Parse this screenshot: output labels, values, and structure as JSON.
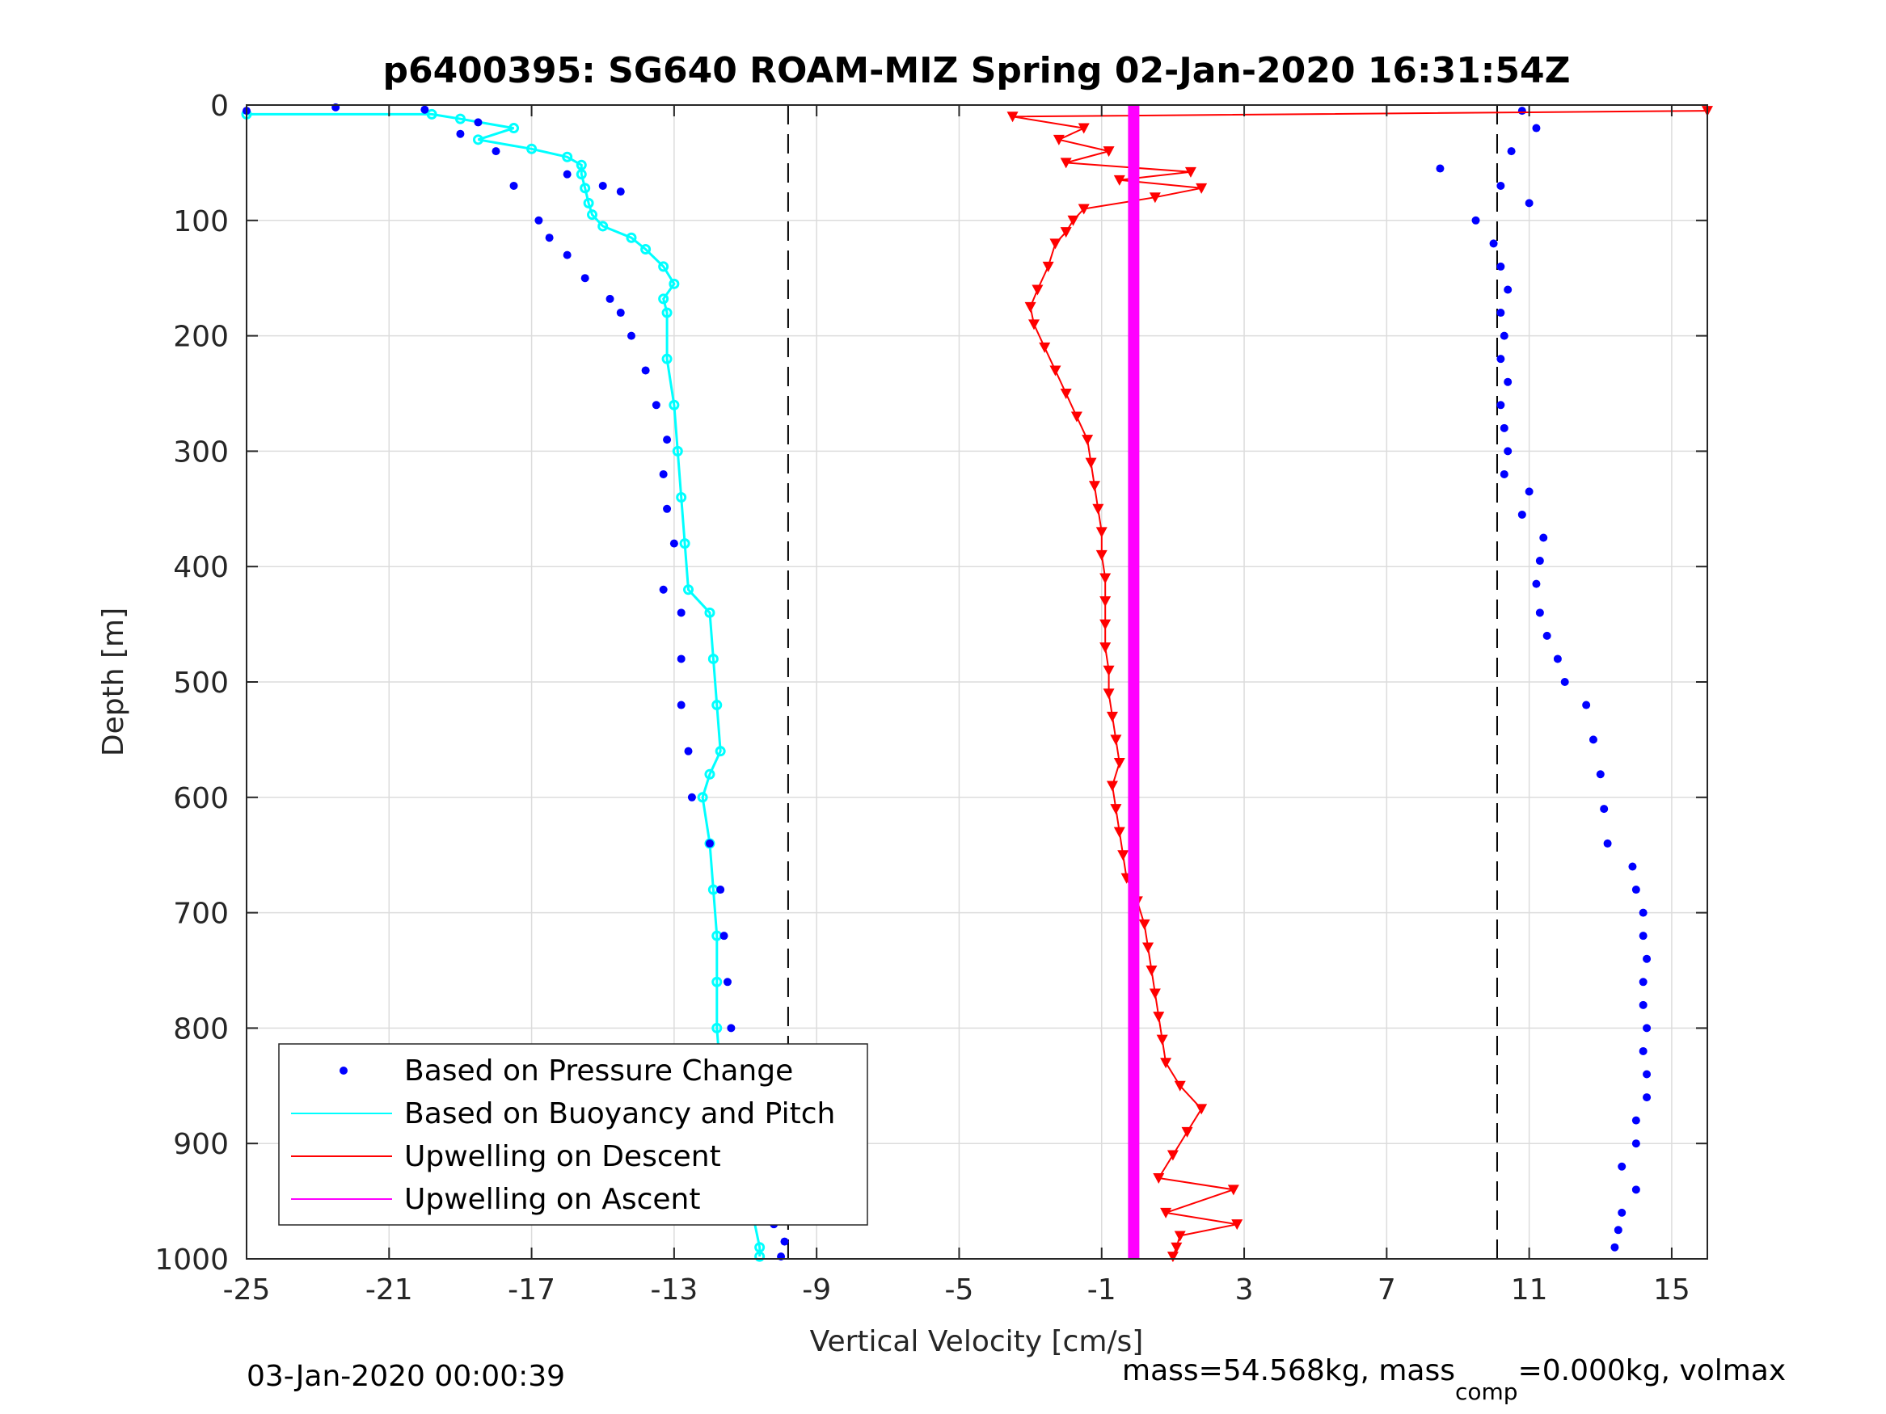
{
  "chart_data": {
    "type": "scatter",
    "title": "p6400395: SG640 ROAM-MIZ Spring 02-Jan-2020 16:31:54Z",
    "xlabel": "Vertical Velocity [cm/s]",
    "ylabel": "Depth [m]",
    "xlim": [
      -25,
      16
    ],
    "ylim": [
      1000,
      0
    ],
    "y_reversed": true,
    "xticks": [
      "-25",
      "-21",
      "-17",
      "-13",
      "-9",
      "-5",
      "-1",
      "3",
      "7",
      "11",
      "15"
    ],
    "yticks": [
      "0",
      "100",
      "200",
      "300",
      "400",
      "500",
      "600",
      "700",
      "800",
      "900",
      "1000"
    ],
    "grid": true,
    "legend_position": "bottom-left",
    "reference_lines": [
      -9.8,
      10.1
    ],
    "series": [
      {
        "name": "Based on Pressure Change",
        "color": "#0000ff",
        "marker": "dot",
        "descent": [
          [
            -25,
            5
          ],
          [
            -22.5,
            2
          ],
          [
            -20,
            4
          ],
          [
            -18.5,
            15
          ],
          [
            -19,
            25
          ],
          [
            -18,
            40
          ],
          [
            -17.5,
            70
          ],
          [
            -16,
            60
          ],
          [
            -15,
            70
          ],
          [
            -14.5,
            75
          ],
          [
            -16.8,
            100
          ],
          [
            -16.5,
            115
          ],
          [
            -16,
            130
          ],
          [
            -15.5,
            150
          ],
          [
            -14.8,
            168
          ],
          [
            -14.5,
            180
          ],
          [
            -14.2,
            200
          ],
          [
            -13.8,
            230
          ],
          [
            -13.5,
            260
          ],
          [
            -13.2,
            290
          ],
          [
            -13.3,
            320
          ],
          [
            -13.2,
            350
          ],
          [
            -13.0,
            380
          ],
          [
            -13.3,
            420
          ],
          [
            -12.8,
            440
          ],
          [
            -12.8,
            480
          ],
          [
            -12.8,
            520
          ],
          [
            -12.6,
            560
          ],
          [
            -12.5,
            600
          ],
          [
            -12.0,
            640
          ],
          [
            -11.7,
            680
          ],
          [
            -11.6,
            720
          ],
          [
            -11.5,
            760
          ],
          [
            -11.4,
            800
          ],
          [
            -11.0,
            830
          ],
          [
            -10.6,
            860
          ],
          [
            -10.4,
            890
          ],
          [
            -10.2,
            910
          ],
          [
            -10.5,
            930
          ],
          [
            -10.2,
            950
          ],
          [
            -10.2,
            970
          ],
          [
            -9.9,
            985
          ],
          [
            -10.0,
            998
          ]
        ],
        "ascent": [
          [
            10.8,
            5
          ],
          [
            11.2,
            20
          ],
          [
            10.5,
            40
          ],
          [
            8.5,
            55
          ],
          [
            10.2,
            70
          ],
          [
            11.0,
            85
          ],
          [
            9.5,
            100
          ],
          [
            10.0,
            120
          ],
          [
            10.2,
            140
          ],
          [
            10.4,
            160
          ],
          [
            10.2,
            180
          ],
          [
            10.3,
            200
          ],
          [
            10.2,
            220
          ],
          [
            10.4,
            240
          ],
          [
            10.2,
            260
          ],
          [
            10.3,
            280
          ],
          [
            10.4,
            300
          ],
          [
            10.3,
            320
          ],
          [
            11.0,
            335
          ],
          [
            10.8,
            355
          ],
          [
            11.4,
            375
          ],
          [
            11.3,
            395
          ],
          [
            11.2,
            415
          ],
          [
            11.3,
            440
          ],
          [
            11.5,
            460
          ],
          [
            11.8,
            480
          ],
          [
            12.0,
            500
          ],
          [
            12.6,
            520
          ],
          [
            12.8,
            550
          ],
          [
            13.0,
            580
          ],
          [
            13.1,
            610
          ],
          [
            13.2,
            640
          ],
          [
            13.9,
            660
          ],
          [
            14.0,
            680
          ],
          [
            14.2,
            700
          ],
          [
            14.2,
            720
          ],
          [
            14.3,
            740
          ],
          [
            14.2,
            760
          ],
          [
            14.2,
            780
          ],
          [
            14.3,
            800
          ],
          [
            14.2,
            820
          ],
          [
            14.3,
            840
          ],
          [
            14.3,
            860
          ],
          [
            14.0,
            880
          ],
          [
            14.0,
            900
          ],
          [
            13.6,
            920
          ],
          [
            14.0,
            940
          ],
          [
            13.6,
            960
          ],
          [
            13.5,
            975
          ],
          [
            13.4,
            990
          ]
        ]
      },
      {
        "name": "Based on Buoyancy and Pitch",
        "color": "#00ffff",
        "marker": "line",
        "points": [
          [
            -25,
            8
          ],
          [
            -19.8,
            8
          ],
          [
            -19.0,
            12
          ],
          [
            -17.5,
            20
          ],
          [
            -18.5,
            30
          ],
          [
            -17.0,
            38
          ],
          [
            -16.0,
            45
          ],
          [
            -15.6,
            52
          ],
          [
            -15.6,
            60
          ],
          [
            -15.5,
            72
          ],
          [
            -15.4,
            85
          ],
          [
            -15.3,
            95
          ],
          [
            -15.0,
            105
          ],
          [
            -14.2,
            115
          ],
          [
            -13.8,
            125
          ],
          [
            -13.3,
            140
          ],
          [
            -13.0,
            155
          ],
          [
            -13.3,
            168
          ],
          [
            -13.2,
            180
          ],
          [
            -13.2,
            220
          ],
          [
            -13.0,
            260
          ],
          [
            -12.9,
            300
          ],
          [
            -12.8,
            340
          ],
          [
            -12.7,
            380
          ],
          [
            -12.6,
            420
          ],
          [
            -12.0,
            440
          ],
          [
            -11.9,
            480
          ],
          [
            -11.8,
            520
          ],
          [
            -11.7,
            560
          ],
          [
            -12.0,
            580
          ],
          [
            -12.2,
            600
          ],
          [
            -12.0,
            640
          ],
          [
            -11.9,
            680
          ],
          [
            -11.8,
            720
          ],
          [
            -11.8,
            760
          ],
          [
            -11.8,
            800
          ],
          [
            -11.7,
            840
          ],
          [
            -11.6,
            870
          ],
          [
            -11.2,
            900
          ],
          [
            -10.8,
            930
          ],
          [
            -10.8,
            960
          ],
          [
            -10.6,
            990
          ],
          [
            -10.6,
            998
          ]
        ]
      },
      {
        "name": "Upwelling on Descent",
        "color": "#ff0000",
        "marker": "triangle-down",
        "points": [
          [
            16,
            5
          ],
          [
            -3.5,
            10
          ],
          [
            -1.5,
            20
          ],
          [
            -2.2,
            30
          ],
          [
            -0.8,
            40
          ],
          [
            -2.0,
            50
          ],
          [
            1.5,
            58
          ],
          [
            -0.5,
            65
          ],
          [
            1.8,
            72
          ],
          [
            0.5,
            80
          ],
          [
            -1.5,
            90
          ],
          [
            -1.8,
            100
          ],
          [
            -2.0,
            110
          ],
          [
            -2.3,
            120
          ],
          [
            -2.5,
            140
          ],
          [
            -2.8,
            160
          ],
          [
            -3.0,
            175
          ],
          [
            -2.9,
            190
          ],
          [
            -2.6,
            210
          ],
          [
            -2.3,
            230
          ],
          [
            -2.0,
            250
          ],
          [
            -1.7,
            270
          ],
          [
            -1.4,
            290
          ],
          [
            -1.3,
            310
          ],
          [
            -1.2,
            330
          ],
          [
            -1.1,
            350
          ],
          [
            -1.0,
            370
          ],
          [
            -1.0,
            390
          ],
          [
            -0.9,
            410
          ],
          [
            -0.9,
            430
          ],
          [
            -0.9,
            450
          ],
          [
            -0.9,
            470
          ],
          [
            -0.8,
            490
          ],
          [
            -0.8,
            510
          ],
          [
            -0.7,
            530
          ],
          [
            -0.6,
            550
          ],
          [
            -0.5,
            570
          ],
          [
            -0.7,
            590
          ],
          [
            -0.6,
            610
          ],
          [
            -0.5,
            630
          ],
          [
            -0.4,
            650
          ],
          [
            -0.3,
            670
          ],
          [
            0.0,
            690
          ],
          [
            0.2,
            710
          ],
          [
            0.3,
            730
          ],
          [
            0.4,
            750
          ],
          [
            0.5,
            770
          ],
          [
            0.6,
            790
          ],
          [
            0.7,
            810
          ],
          [
            0.8,
            830
          ],
          [
            1.2,
            850
          ],
          [
            1.8,
            870
          ],
          [
            1.4,
            890
          ],
          [
            1.0,
            910
          ],
          [
            0.6,
            930
          ],
          [
            2.7,
            940
          ],
          [
            0.8,
            960
          ],
          [
            2.8,
            970
          ],
          [
            1.2,
            980
          ],
          [
            1.1,
            990
          ],
          [
            1.0,
            998
          ]
        ]
      },
      {
        "name": "Upwelling on Ascent",
        "color": "#ff00ff",
        "marker": "line",
        "points": [
          [
            -0.1,
            0
          ],
          [
            -0.1,
            1000
          ]
        ]
      }
    ],
    "annotations": {
      "date": "03-Jan-2020 00:00:39",
      "mass": "mass=54.568kg, mass",
      "mass_sub": "comp",
      "mass_rest": "=0.000kg, volmax"
    }
  }
}
